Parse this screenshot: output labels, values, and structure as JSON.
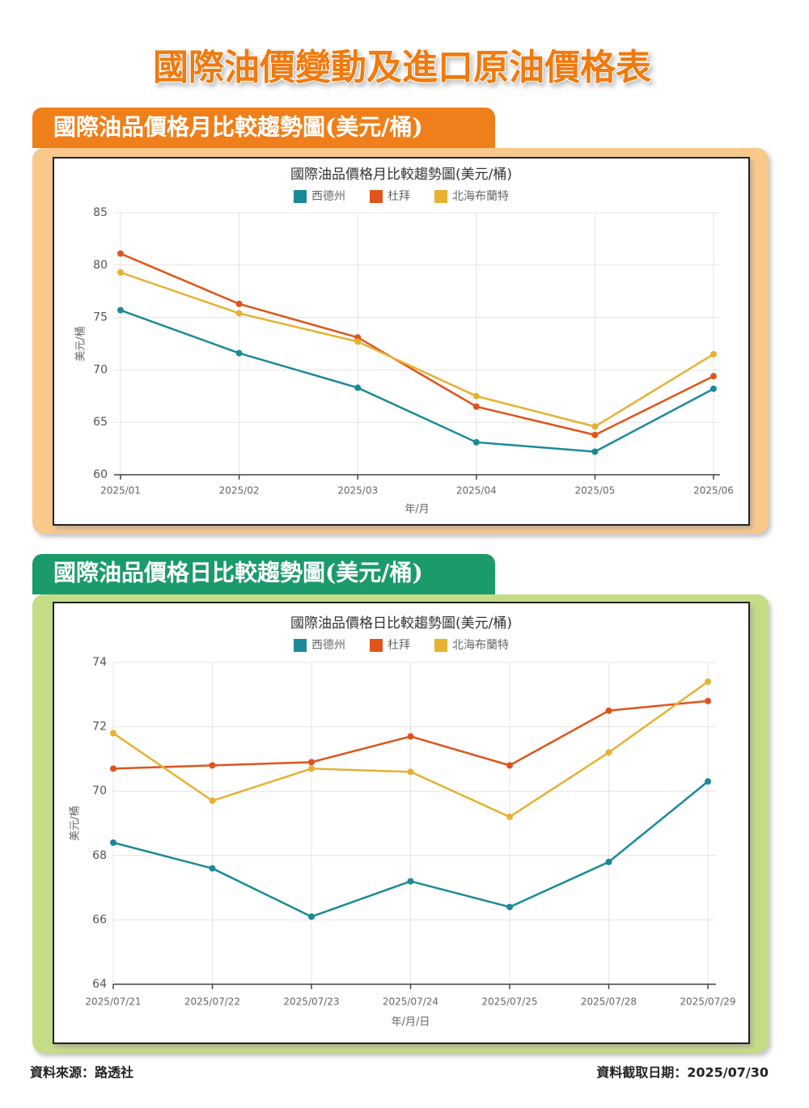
{
  "title": "國際油價變動及進口原油價格表",
  "chart_data": [
    {
      "type": "line",
      "section_title": "國際油品價格月比較趨勢圖(美元/桶)",
      "title": "國際油品價格月比較趨勢圖(美元/桶)",
      "x_label": "年/月",
      "y_label": "美元/桶",
      "categories": [
        "2025/01",
        "2025/02",
        "2025/03",
        "2025/04",
        "2025/05",
        "2025/06"
      ],
      "series": [
        {
          "name": "西德州",
          "color": "#1b8a97",
          "values": [
            75.7,
            71.6,
            68.3,
            63.1,
            62.2,
            68.2
          ]
        },
        {
          "name": "杜拜",
          "color": "#e0541b",
          "values": [
            81.1,
            76.3,
            73.1,
            66.5,
            63.8,
            69.4
          ]
        },
        {
          "name": "北海布蘭特",
          "color": "#e6b132",
          "values": [
            79.3,
            75.4,
            72.7,
            67.5,
            64.6,
            71.5
          ]
        }
      ],
      "ylim": [
        60,
        85
      ],
      "yticks": [
        60,
        65,
        70,
        75,
        80,
        85
      ],
      "grid": true,
      "legend_position": "top"
    },
    {
      "type": "line",
      "section_title": "國際油品價格日比較趨勢圖(美元/桶)",
      "title": "國際油品價格日比較趨勢圖(美元/桶)",
      "x_label": "年/月/日",
      "y_label": "美元/桶",
      "categories": [
        "2025/07/21",
        "2025/07/22",
        "2025/07/23",
        "2025/07/24",
        "2025/07/25",
        "2025/07/28",
        "2025/07/29"
      ],
      "series": [
        {
          "name": "西德州",
          "color": "#1b8a97",
          "values": [
            68.4,
            67.6,
            66.1,
            67.2,
            66.4,
            67.8,
            70.3
          ]
        },
        {
          "name": "杜拜",
          "color": "#e0541b",
          "values": [
            70.7,
            70.8,
            70.9,
            71.7,
            70.8,
            72.5,
            72.8
          ]
        },
        {
          "name": "北海布蘭特",
          "color": "#e6b132",
          "values": [
            71.8,
            69.7,
            70.7,
            70.6,
            69.2,
            71.2,
            73.4
          ]
        }
      ],
      "ylim": [
        64,
        74
      ],
      "yticks": [
        64,
        66,
        68,
        70,
        72,
        74
      ],
      "grid": true,
      "legend_position": "top"
    }
  ],
  "footer": {
    "source": "資料來源：路透社",
    "date": "資料截取日期：2025/07/30"
  }
}
